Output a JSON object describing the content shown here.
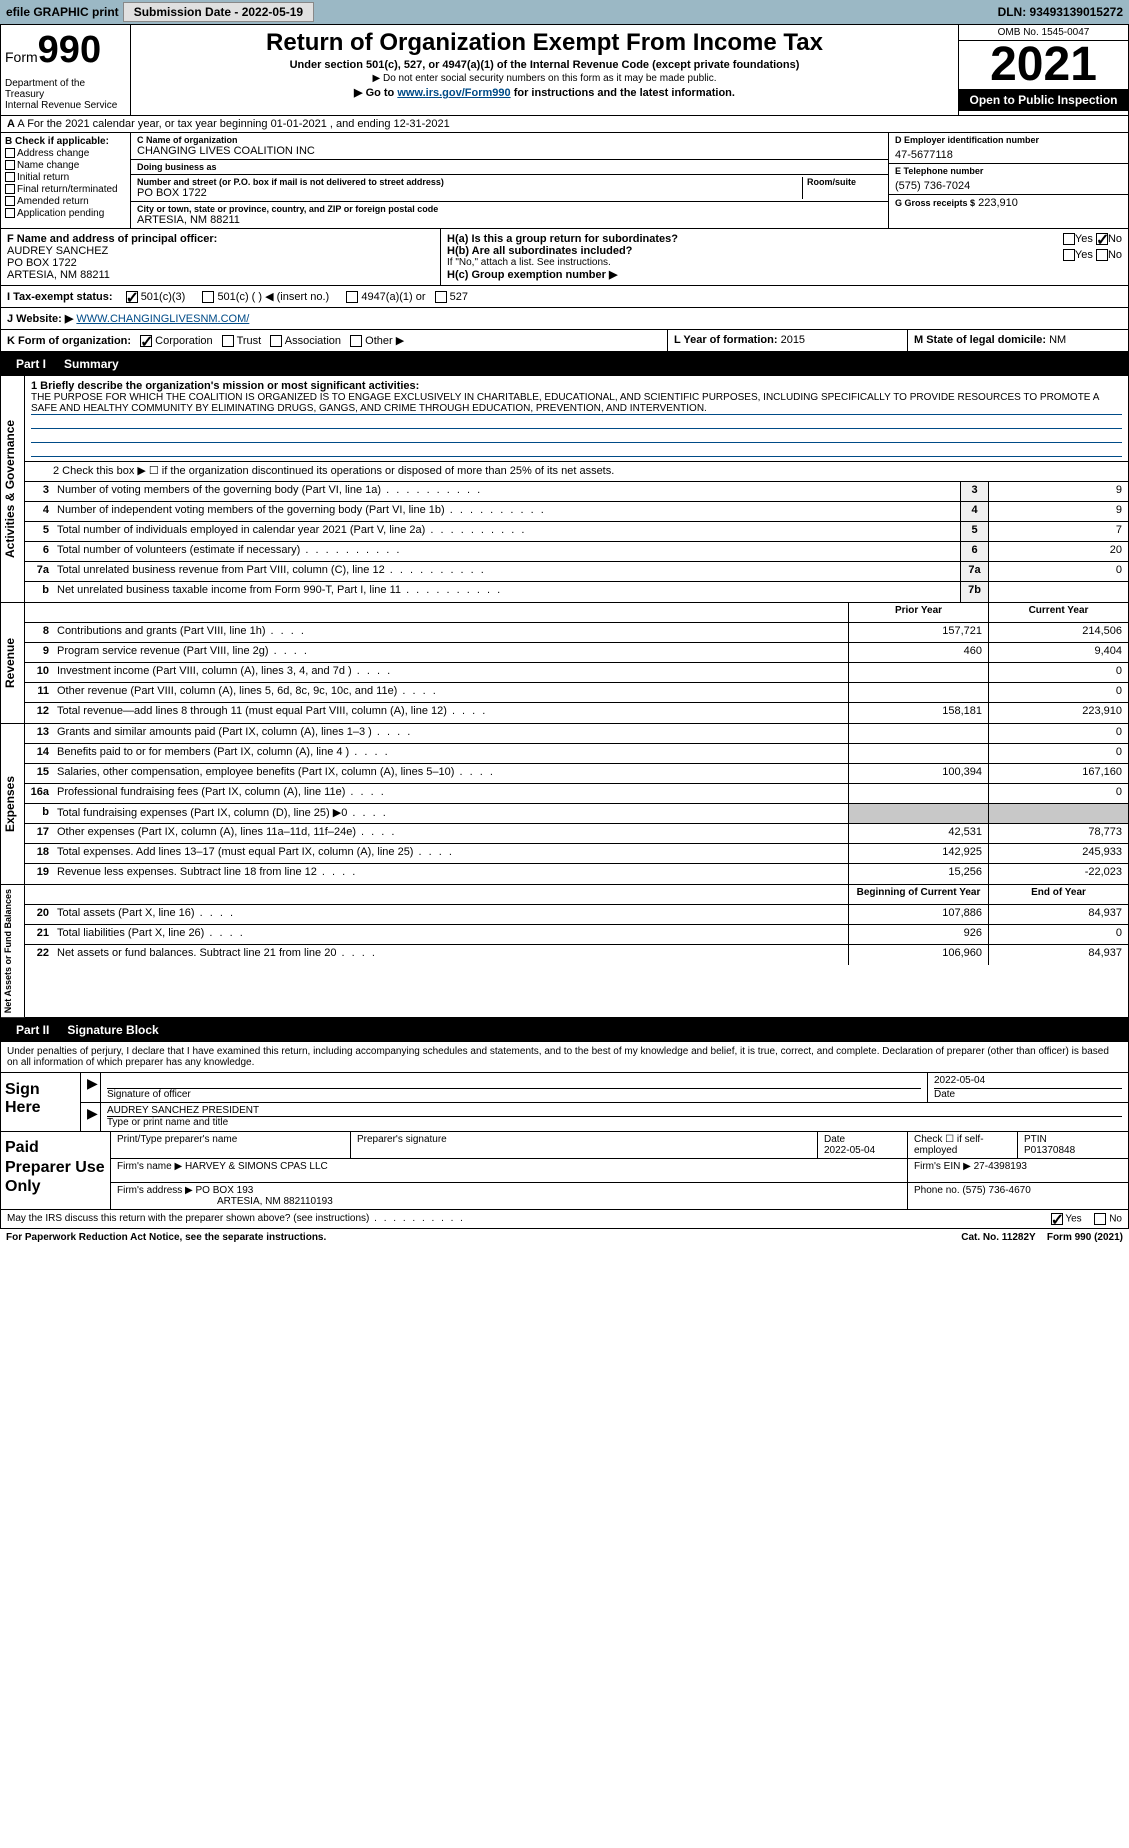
{
  "topbar": {
    "efile_label": "efile GRAPHIC print",
    "submission_label": "Submission Date - 2022-05-19",
    "dln_label": "DLN: 93493139015272"
  },
  "header": {
    "form_word": "Form",
    "form_number": "990",
    "dept": "Department of the Treasury\nInternal Revenue Service",
    "title": "Return of Organization Exempt From Income Tax",
    "sub1": "Under section 501(c), 527, or 4947(a)(1) of the Internal Revenue Code (except private foundations)",
    "sub2": "▶ Do not enter social security numbers on this form as it may be made public.",
    "sub3_pre": "▶ Go to ",
    "sub3_link": "www.irs.gov/Form990",
    "sub3_post": " for instructions and the latest information.",
    "omb": "OMB No. 1545-0047",
    "year": "2021",
    "open_pub": "Open to Public Inspection"
  },
  "rowA": {
    "text": "A For the 2021 calendar year, or tax year beginning 01-01-2021    , and ending 12-31-2021"
  },
  "colB": {
    "hdr": "B Check if applicable:",
    "opts": [
      "Address change",
      "Name change",
      "Initial return",
      "Final return/terminated",
      "Amended return",
      "Application pending"
    ]
  },
  "colC": {
    "name_lab": "C Name of organization",
    "name": "CHANGING LIVES COALITION INC",
    "dba_lab": "Doing business as",
    "dba": "",
    "street_lab": "Number and street (or P.O. box if mail is not delivered to street address)",
    "room_lab": "Room/suite",
    "street": "PO BOX 1722",
    "city_lab": "City or town, state or province, country, and ZIP or foreign postal code",
    "city": "ARTESIA, NM  88211"
  },
  "colD": {
    "ein_lab": "D Employer identification number",
    "ein": "47-5677118",
    "phone_lab": "E Telephone number",
    "phone": "(575) 736-7024",
    "gross_lab": "G Gross receipts $",
    "gross": "223,910"
  },
  "sectF": {
    "lab": "F  Name and address of principal officer:",
    "name": "AUDREY SANCHEZ",
    "addr1": "PO BOX 1722",
    "addr2": "ARTESIA, NM  88211"
  },
  "sectH": {
    "ha": "H(a)  Is this a group return for subordinates?",
    "hb": "H(b)  Are all subordinates included?",
    "hb_note": "If \"No,\" attach a list. See instructions.",
    "hc": "H(c)  Group exemption number ▶",
    "yes": "Yes",
    "no": "No"
  },
  "rowI": {
    "lab": "I   Tax-exempt status:",
    "o1": "501(c)(3)",
    "o2": "501(c) (   ) ◀ (insert no.)",
    "o3": "4947(a)(1) or",
    "o4": "527"
  },
  "rowJ": {
    "lab": "J   Website: ▶",
    "url": "WWW.CHANGINGLIVESNM.COM/"
  },
  "rowK": {
    "lab": "K Form of organization:",
    "o1": "Corporation",
    "o2": "Trust",
    "o3": "Association",
    "o4": "Other ▶",
    "l_lab": "L Year of formation:",
    "l_val": "2015",
    "m_lab": "M State of legal domicile:",
    "m_val": "NM"
  },
  "part1": {
    "hdr_part": "Part I",
    "hdr_title": "Summary",
    "line1_lab": "1  Briefly describe the organization's mission or most significant activities:",
    "mission": "THE PURPOSE FOR WHICH THE COALITION IS ORGANIZED IS TO ENGAGE EXCLUSIVELY IN CHARITABLE, EDUCATIONAL, AND SCIENTIFIC PURPOSES, INCLUDING SPECIFICALLY TO PROVIDE RESOURCES TO PROMOTE A SAFE AND HEALTHY COMMUNITY BY ELIMINATING DRUGS, GANGS, AND CRIME THROUGH EDUCATION, PREVENTION, AND INTERVENTION.",
    "line2": "2   Check this box ▶ ☐  if the organization discontinued its operations or disposed of more than 25% of its net assets.",
    "vlab_act": "Activities & Governance",
    "vlab_rev": "Revenue",
    "vlab_exp": "Expenses",
    "vlab_net": "Net Assets or Fund Balances",
    "col_prior": "Prior Year",
    "col_curr": "Current Year",
    "col_begin": "Beginning of Current Year",
    "col_end": "End of Year",
    "gov_lines": [
      {
        "n": "3",
        "t": "Number of voting members of the governing body (Part VI, line 1a)",
        "box": "3",
        "v": "9"
      },
      {
        "n": "4",
        "t": "Number of independent voting members of the governing body (Part VI, line 1b)",
        "box": "4",
        "v": "9"
      },
      {
        "n": "5",
        "t": "Total number of individuals employed in calendar year 2021 (Part V, line 2a)",
        "box": "5",
        "v": "7"
      },
      {
        "n": "6",
        "t": "Total number of volunteers (estimate if necessary)",
        "box": "6",
        "v": "20"
      },
      {
        "n": "7a",
        "t": "Total unrelated business revenue from Part VIII, column (C), line 12",
        "box": "7a",
        "v": "0"
      },
      {
        "n": "b",
        "t": "Net unrelated business taxable income from Form 990-T, Part I, line 11",
        "box": "7b",
        "v": ""
      }
    ],
    "rev_lines": [
      {
        "n": "8",
        "t": "Contributions and grants (Part VIII, line 1h)",
        "p": "157,721",
        "c": "214,506"
      },
      {
        "n": "9",
        "t": "Program service revenue (Part VIII, line 2g)",
        "p": "460",
        "c": "9,404"
      },
      {
        "n": "10",
        "t": "Investment income (Part VIII, column (A), lines 3, 4, and 7d )",
        "p": "",
        "c": "0"
      },
      {
        "n": "11",
        "t": "Other revenue (Part VIII, column (A), lines 5, 6d, 8c, 9c, 10c, and 11e)",
        "p": "",
        "c": "0"
      },
      {
        "n": "12",
        "t": "Total revenue—add lines 8 through 11 (must equal Part VIII, column (A), line 12)",
        "p": "158,181",
        "c": "223,910"
      }
    ],
    "exp_lines": [
      {
        "n": "13",
        "t": "Grants and similar amounts paid (Part IX, column (A), lines 1–3 )",
        "p": "",
        "c": "0"
      },
      {
        "n": "14",
        "t": "Benefits paid to or for members (Part IX, column (A), line 4 )",
        "p": "",
        "c": "0"
      },
      {
        "n": "15",
        "t": "Salaries, other compensation, employee benefits (Part IX, column (A), lines 5–10)",
        "p": "100,394",
        "c": "167,160"
      },
      {
        "n": "16a",
        "t": "Professional fundraising fees (Part IX, column (A), line 11e)",
        "p": "",
        "c": "0"
      },
      {
        "n": "b",
        "t": "Total fundraising expenses (Part IX, column (D), line 25) ▶0",
        "p": "shade",
        "c": "shade"
      },
      {
        "n": "17",
        "t": "Other expenses (Part IX, column (A), lines 11a–11d, 11f–24e)",
        "p": "42,531",
        "c": "78,773"
      },
      {
        "n": "18",
        "t": "Total expenses. Add lines 13–17 (must equal Part IX, column (A), line 25)",
        "p": "142,925",
        "c": "245,933"
      },
      {
        "n": "19",
        "t": "Revenue less expenses. Subtract line 18 from line 12",
        "p": "15,256",
        "c": "-22,023"
      }
    ],
    "net_lines": [
      {
        "n": "20",
        "t": "Total assets (Part X, line 16)",
        "p": "107,886",
        "c": "84,937"
      },
      {
        "n": "21",
        "t": "Total liabilities (Part X, line 26)",
        "p": "926",
        "c": "0"
      },
      {
        "n": "22",
        "t": "Net assets or fund balances. Subtract line 21 from line 20",
        "p": "106,960",
        "c": "84,937"
      }
    ]
  },
  "part2": {
    "hdr_part": "Part II",
    "hdr_title": "Signature Block",
    "intro": "Under penalties of perjury, I declare that I have examined this return, including accompanying schedules and statements, and to the best of my knowledge and belief, it is true, correct, and complete. Declaration of preparer (other than officer) is based on all information of which preparer has any knowledge.",
    "sign_here": "Sign Here",
    "sig_officer_lab": "Signature of officer",
    "sig_date": "2022-05-04",
    "date_lab": "Date",
    "officer_name": "AUDREY SANCHEZ  PRESIDENT",
    "officer_name_lab": "Type or print name and title",
    "paid_prep": "Paid Preparer Use Only",
    "prep_name_lab": "Print/Type preparer's name",
    "prep_sig_lab": "Preparer's signature",
    "prep_date_lab": "Date",
    "prep_date": "2022-05-04",
    "prep_check_lab": "Check ☐ if self-employed",
    "ptin_lab": "PTIN",
    "ptin": "P01370848",
    "firm_name_lab": "Firm's name    ▶",
    "firm_name": "HARVEY & SIMONS CPAS LLC",
    "firm_ein_lab": "Firm's EIN ▶",
    "firm_ein": "27-4398193",
    "firm_addr_lab": "Firm's address ▶",
    "firm_addr": "PO BOX 193",
    "firm_addr2": "ARTESIA, NM  882110193",
    "firm_phone_lab": "Phone no.",
    "firm_phone": "(575) 736-4670",
    "discuss": "May the IRS discuss this return with the preparer shown above? (see instructions)",
    "yes": "Yes",
    "no": "No"
  },
  "footer": {
    "pra": "For Paperwork Reduction Act Notice, see the separate instructions.",
    "cat": "Cat. No. 11282Y",
    "form": "Form 990 (2021)"
  }
}
